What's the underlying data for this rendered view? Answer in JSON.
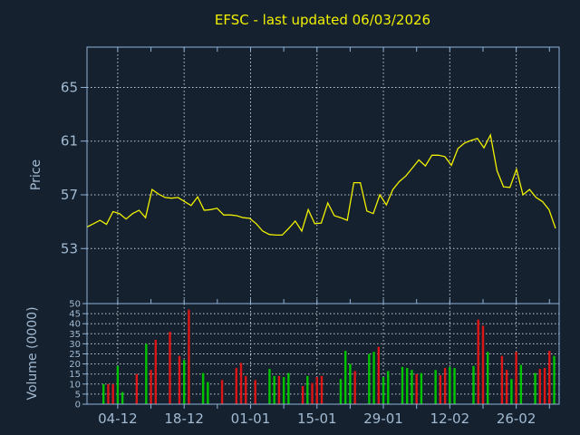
{
  "title": "EFSC - last updated 06/03/2026",
  "colors": {
    "background": "#15212e",
    "frame": "#8fb2d8",
    "label_text": "#a2bad2",
    "title_text": "#f0f000",
    "grid_dots": "#c4cad1",
    "price_line": "#f0f000",
    "volume_up": "#00c400",
    "volume_down": "#dd1515"
  },
  "price_panel": {
    "axis_title": "Price",
    "tick_labels": [
      65,
      61,
      57,
      53
    ],
    "ylim": [
      48.9,
      68.0
    ]
  },
  "volume_panel": {
    "axis_title": "Volume (0000)",
    "tick_labels": [
      50,
      45,
      40,
      35,
      30,
      25,
      20,
      15,
      10,
      5,
      0
    ],
    "ylim": [
      0,
      50
    ]
  },
  "x_axis": {
    "tick_labels": [
      "04-12",
      "18-12",
      "01-01",
      "15-01",
      "29-01",
      "12-02",
      "26-02"
    ],
    "tick_day_offsets": [
      6,
      20,
      34,
      48,
      62,
      76,
      90
    ],
    "days_total": 98
  },
  "chart_data": [
    {
      "type": "line",
      "name": "price",
      "title": "EFSC - last updated 06/03/2026",
      "ylabel": "Price",
      "ylim": [
        48.9,
        68.0
      ],
      "grid": true,
      "legend": "none",
      "values": [
        54.6,
        54.85,
        55.1,
        54.8,
        55.75,
        55.6,
        55.2,
        55.6,
        55.85,
        55.3,
        57.4,
        57.05,
        56.8,
        56.75,
        56.8,
        56.5,
        56.2,
        56.85,
        55.85,
        55.9,
        56.0,
        55.5,
        55.5,
        55.45,
        55.3,
        55.25,
        54.85,
        54.3,
        54.05,
        54.0,
        54.0,
        54.5,
        55.05,
        54.3,
        55.9,
        54.85,
        54.9,
        56.4,
        55.45,
        55.3,
        55.1,
        57.9,
        57.9,
        55.8,
        55.6,
        57.0,
        56.25,
        57.4,
        58.0,
        58.4,
        59.0,
        59.6,
        59.15,
        59.95,
        59.95,
        59.85,
        59.2,
        60.45,
        60.85,
        61.05,
        61.2,
        60.5,
        61.45,
        58.8,
        57.6,
        57.55,
        58.9,
        57.0,
        57.4,
        56.8,
        56.5,
        55.9,
        54.5
      ]
    },
    {
      "type": "bar",
      "name": "volume",
      "ylabel": "Volume (0000)",
      "ylim": [
        0,
        50
      ],
      "grid": true,
      "legend": "none",
      "bars_day_value_dir": [
        [
          3,
          10,
          "u"
        ],
        [
          4,
          10,
          "d"
        ],
        [
          5,
          10,
          "d"
        ],
        [
          6,
          19,
          "u"
        ],
        [
          7,
          6,
          "u"
        ],
        [
          10,
          15,
          "d"
        ],
        [
          12,
          30,
          "u"
        ],
        [
          13,
          17,
          "d"
        ],
        [
          14,
          32,
          "d"
        ],
        [
          17,
          36,
          "d"
        ],
        [
          19,
          24,
          "d"
        ],
        [
          20,
          22,
          "u"
        ],
        [
          21,
          47,
          "d"
        ],
        [
          24,
          15.5,
          "u"
        ],
        [
          25,
          11,
          "u"
        ],
        [
          28,
          12,
          "d"
        ],
        [
          31,
          18,
          "d"
        ],
        [
          32,
          20.5,
          "d"
        ],
        [
          33,
          14,
          "d"
        ],
        [
          35,
          12,
          "d"
        ],
        [
          38,
          17.5,
          "u"
        ],
        [
          39,
          14,
          "u"
        ],
        [
          40,
          14,
          "d"
        ],
        [
          41,
          13.5,
          "u"
        ],
        [
          42,
          15.5,
          "u"
        ],
        [
          45,
          9,
          "d"
        ],
        [
          46,
          14,
          "u"
        ],
        [
          47,
          10.5,
          "d"
        ],
        [
          48,
          13.5,
          "d"
        ],
        [
          49,
          14,
          "d"
        ],
        [
          53,
          12.5,
          "u"
        ],
        [
          54,
          26.5,
          "u"
        ],
        [
          55,
          20,
          "u"
        ],
        [
          56,
          16.5,
          "d"
        ],
        [
          59,
          25,
          "u"
        ],
        [
          60,
          26,
          "u"
        ],
        [
          61,
          28.5,
          "d"
        ],
        [
          62,
          13.5,
          "u"
        ],
        [
          63,
          16.5,
          "u"
        ],
        [
          66,
          18.5,
          "u"
        ],
        [
          67,
          18,
          "u"
        ],
        [
          68,
          17,
          "u"
        ],
        [
          69,
          15,
          "d"
        ],
        [
          70,
          15.5,
          "u"
        ],
        [
          73,
          17,
          "u"
        ],
        [
          74,
          14.5,
          "d"
        ],
        [
          75,
          18,
          "d"
        ],
        [
          76,
          18.5,
          "u"
        ],
        [
          77,
          18,
          "u"
        ],
        [
          81,
          19,
          "u"
        ],
        [
          82,
          42,
          "d"
        ],
        [
          83,
          39,
          "d"
        ],
        [
          84,
          26,
          "u"
        ],
        [
          87,
          24,
          "d"
        ],
        [
          88,
          17,
          "d"
        ],
        [
          89,
          12.5,
          "u"
        ],
        [
          90,
          26,
          "d"
        ],
        [
          91,
          19.5,
          "u"
        ],
        [
          94,
          15.5,
          "u"
        ],
        [
          95,
          17.5,
          "d"
        ],
        [
          96,
          18,
          "d"
        ],
        [
          97,
          26.5,
          "d"
        ],
        [
          98,
          24,
          "u"
        ]
      ]
    }
  ]
}
